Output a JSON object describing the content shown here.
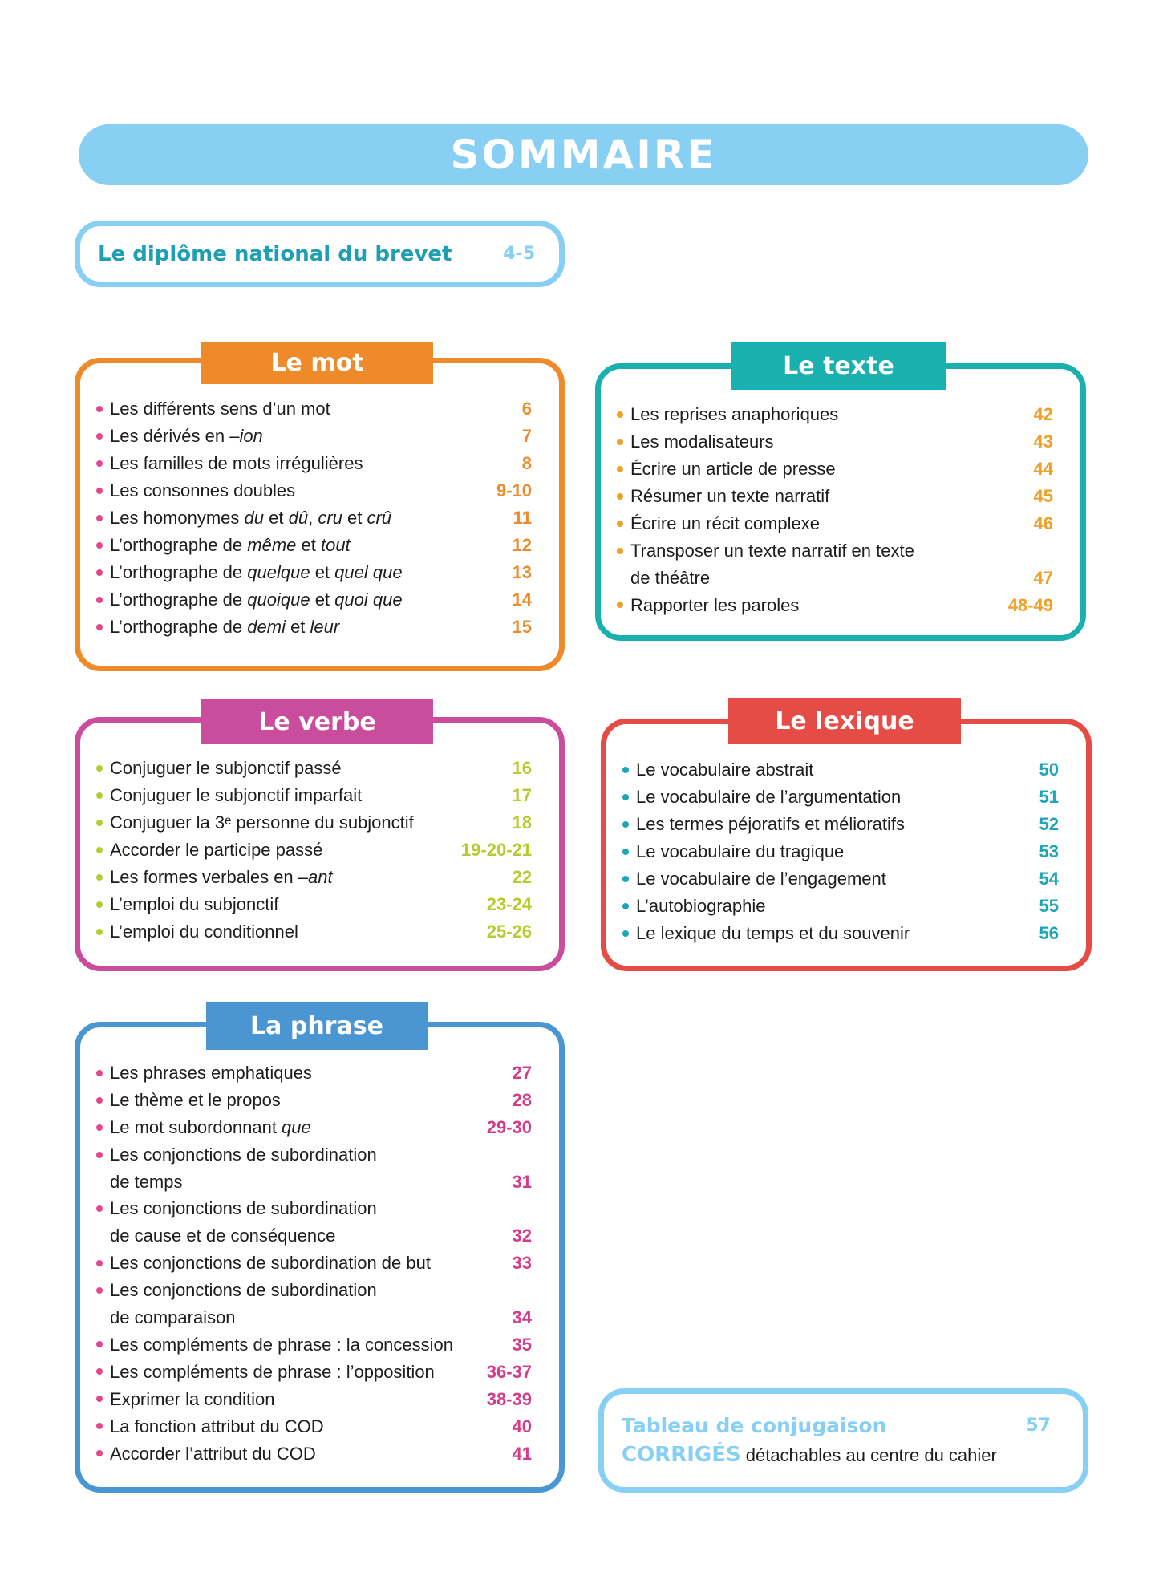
{
  "title": "SOMMAIRE",
  "intro": {
    "label": "Le diplôme national du brevet",
    "pages": "4-5"
  },
  "sections": [
    {
      "title": "Le mot",
      "items": [
        {
          "label": [
            "Les différents sens d’un mot"
          ],
          "pages": "6"
        },
        {
          "label": [
            "Les dérivés en –",
            "ion"
          ],
          "pages": "7"
        },
        {
          "label": [
            "Les familles de mots irrégulières"
          ],
          "pages": "8"
        },
        {
          "label": [
            "Les consonnes doubles"
          ],
          "pages": "9-10"
        },
        {
          "label": [
            "Les homonymes ",
            "du",
            " et ",
            "dû",
            ", ",
            "cru",
            " et ",
            "crû"
          ],
          "pages": "11"
        },
        {
          "label": [
            "L’orthographe de ",
            "même",
            " et ",
            "tout"
          ],
          "pages": "12"
        },
        {
          "label": [
            "L’orthographe de ",
            "quelque",
            " et ",
            "quel que"
          ],
          "pages": "13"
        },
        {
          "label": [
            "L’orthographe de ",
            "quoique",
            " et ",
            "quoi que"
          ],
          "pages": "14"
        },
        {
          "label": [
            "L’orthographe de ",
            "demi",
            " et ",
            "leur"
          ],
          "pages": "15"
        }
      ]
    },
    {
      "title": "Le texte",
      "items": [
        {
          "label": [
            "Les reprises anaphoriques"
          ],
          "pages": "42"
        },
        {
          "label": [
            "Les modalisateurs"
          ],
          "pages": "43"
        },
        {
          "label": [
            "Écrire un article de presse"
          ],
          "pages": "44"
        },
        {
          "label": [
            "Résumer un texte narratif"
          ],
          "pages": "45"
        },
        {
          "label": [
            "Écrire un récit complexe"
          ],
          "pages": "46"
        },
        {
          "label": [
            "Transposer un texte narratif en texte\nde théâtre"
          ],
          "pages": "47"
        },
        {
          "label": [
            "Rapporter les paroles"
          ],
          "pages": "48-49"
        }
      ]
    },
    {
      "title": "Le verbe",
      "items": [
        {
          "label": [
            "Conjuguer le subjonctif passé"
          ],
          "pages": "16"
        },
        {
          "label": [
            "Conjuguer le subjonctif imparfait"
          ],
          "pages": "17"
        },
        {
          "label": [
            "Conjuguer la 3ᵉ personne du subjonctif"
          ],
          "pages": "18"
        },
        {
          "label": [
            "Accorder le participe passé"
          ],
          "pages": "19-20-21"
        },
        {
          "label": [
            "Les formes verbales en –",
            "ant"
          ],
          "pages": "22"
        },
        {
          "label": [
            "L’emploi du subjonctif"
          ],
          "pages": "23-24"
        },
        {
          "label": [
            "L’emploi du conditionnel"
          ],
          "pages": "25-26"
        }
      ]
    },
    {
      "title": "Le lexique",
      "items": [
        {
          "label": [
            "Le vocabulaire abstrait"
          ],
          "pages": "50"
        },
        {
          "label": [
            "Le vocabulaire de l’argumentation"
          ],
          "pages": "51"
        },
        {
          "label": [
            "Les termes péjoratifs et mélioratifs"
          ],
          "pages": "52"
        },
        {
          "label": [
            "Le vocabulaire du tragique"
          ],
          "pages": "53"
        },
        {
          "label": [
            "Le vocabulaire de l’engagement"
          ],
          "pages": "54"
        },
        {
          "label": [
            "L’autobiographie"
          ],
          "pages": "55"
        },
        {
          "label": [
            "Le lexique du temps et du souvenir"
          ],
          "pages": "56"
        }
      ]
    },
    {
      "title": "La phrase",
      "items": [
        {
          "label": [
            "Les phrases emphatiques"
          ],
          "pages": "27"
        },
        {
          "label": [
            "Le thème et le propos"
          ],
          "pages": "28"
        },
        {
          "label": [
            "Le mot subordonnant ",
            "que"
          ],
          "pages": "29-30"
        },
        {
          "label": [
            "Les conjonctions de subordination\nde temps"
          ],
          "pages": "31"
        },
        {
          "label": [
            "Les conjonctions de subordination\nde cause et de conséquence"
          ],
          "pages": "32"
        },
        {
          "label": [
            "Les conjonctions de subordination de but"
          ],
          "pages": "33"
        },
        {
          "label": [
            "Les conjonctions de subordination\nde comparaison"
          ],
          "pages": "34"
        },
        {
          "label": [
            "Les compléments de phrase : la concession"
          ],
          "pages": "35"
        },
        {
          "label": [
            "Les compléments de phrase : l’opposition"
          ],
          "pages": "36-37"
        },
        {
          "label": [
            "Exprimer la condition"
          ],
          "pages": "38-39"
        },
        {
          "label": [
            "La fonction attribut du COD"
          ],
          "pages": "40"
        },
        {
          "label": [
            "Accorder l’attribut du COD"
          ],
          "pages": "41"
        }
      ]
    }
  ],
  "footer": {
    "conjugation": {
      "label": "Tableau de conjugaison",
      "pages": "57"
    },
    "corriges": {
      "label": "CORRIGÉS",
      "text": "détachables au centre du cahier"
    }
  }
}
